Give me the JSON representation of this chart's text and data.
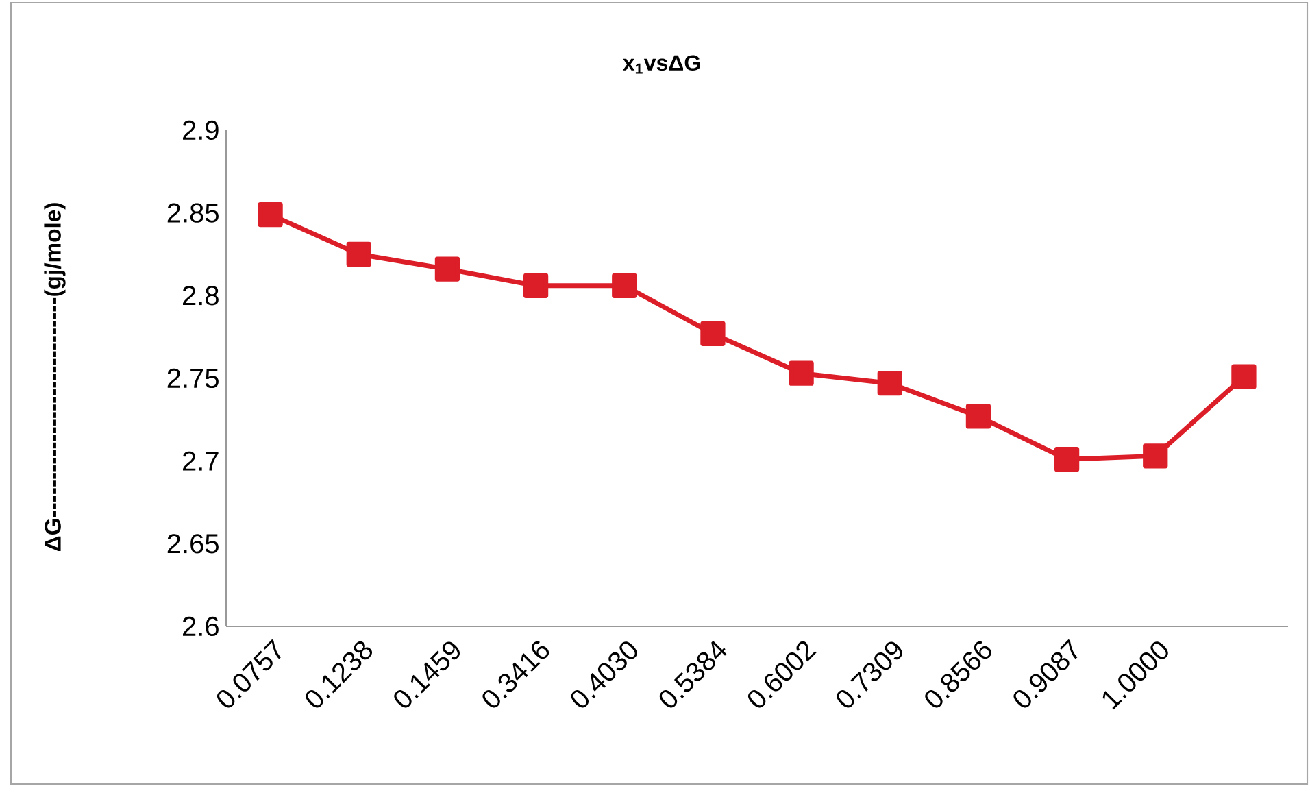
{
  "chart_data": {
    "type": "line",
    "title": "x$_{1}$vsΔG",
    "ylabel": "ΔG-----------------------------(gj/mole)",
    "categories": [
      "0.0757",
      "0.1238",
      "0.1459",
      "0.3416",
      "0.4030",
      "0.5384",
      "0.6002",
      "0.7309",
      "0.8566",
      "0.9087",
      "1.0000",
      null
    ],
    "series": [
      {
        "color": "#dc1e28",
        "values": [
          2.849,
          2.825,
          2.816,
          2.806,
          2.806,
          2.777,
          2.753,
          2.747,
          2.727,
          2.701,
          2.703,
          2.751
        ]
      }
    ],
    "ylim": [
      2.6,
      2.9
    ],
    "yticks": [
      2.6,
      2.65,
      2.7,
      2.75,
      2.8,
      2.85,
      2.9
    ],
    "marker": "square",
    "line_style": "solid"
  }
}
